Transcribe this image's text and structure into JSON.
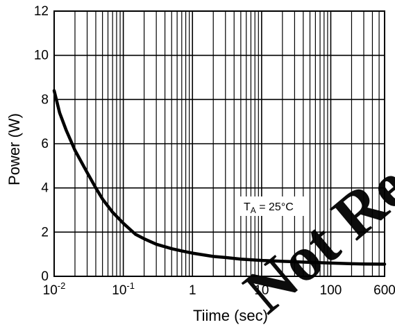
{
  "chart_data": {
    "type": "line",
    "xscale": "log",
    "xlim": [
      0.01,
      600
    ],
    "ylim": [
      0,
      12
    ],
    "xlabel": "Tiime (sec)",
    "ylabel": "Power (W)",
    "grid": true,
    "xticks": [
      {
        "value": 0.01,
        "base": "10",
        "exp": "-2"
      },
      {
        "value": 0.1,
        "base": "10",
        "exp": "-1"
      },
      {
        "value": 1,
        "base": "1",
        "exp": ""
      },
      {
        "value": 10,
        "base": "10",
        "exp": ""
      },
      {
        "value": 100,
        "base": "100",
        "exp": ""
      },
      {
        "value": 600,
        "base": "600",
        "exp": ""
      }
    ],
    "yticks": [
      "0",
      "2",
      "4",
      "6",
      "8",
      "10",
      "12"
    ],
    "annotation": {
      "t": "T",
      "sub": "A",
      "rest": " = 25°C"
    },
    "series": [
      {
        "x": [
          0.01,
          0.012,
          0.015,
          0.02,
          0.03,
          0.04,
          0.05,
          0.07,
          0.1,
          0.15,
          0.2,
          0.3,
          0.5,
          0.7,
          1,
          2,
          3,
          5,
          10,
          20,
          30,
          50,
          100,
          200,
          300,
          600
        ],
        "y": [
          8.4,
          7.4,
          6.6,
          5.7,
          4.7,
          4.0,
          3.5,
          2.9,
          2.4,
          1.9,
          1.7,
          1.45,
          1.25,
          1.15,
          1.05,
          0.9,
          0.85,
          0.78,
          0.72,
          0.68,
          0.66,
          0.63,
          0.6,
          0.57,
          0.56,
          0.55
        ]
      }
    ]
  },
  "watermark": "Not Rec"
}
